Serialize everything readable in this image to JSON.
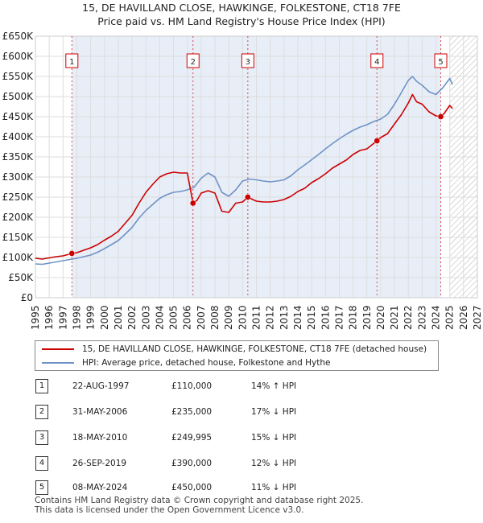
{
  "chart_data": {
    "type": "line",
    "title": "15, DE HAVILLAND CLOSE, HAWKINGE, FOLKESTONE, CT18 7FE",
    "subtitle": "Price paid vs. HM Land Registry's House Price Index (HPI)",
    "xlim": [
      1995,
      2027
    ],
    "ylim": [
      0,
      650000
    ],
    "x_ticks": [
      "1995",
      "1996",
      "1997",
      "1998",
      "1999",
      "2000",
      "2001",
      "2002",
      "2003",
      "2004",
      "2005",
      "2006",
      "2007",
      "2008",
      "2009",
      "2010",
      "2011",
      "2012",
      "2013",
      "2014",
      "2015",
      "2016",
      "2017",
      "2018",
      "2019",
      "2020",
      "2021",
      "2022",
      "2023",
      "2024",
      "2025",
      "2026",
      "2027"
    ],
    "y_ticks": [
      "£0",
      "£50K",
      "£100K",
      "£150K",
      "£200K",
      "£250K",
      "£300K",
      "£350K",
      "£400K",
      "£450K",
      "£500K",
      "£550K",
      "£600K",
      "£650K"
    ],
    "forecast_start": 2025,
    "series": [
      {
        "name": "15, DE HAVILLAND CLOSE, HAWKINGE, FOLKESTONE, CT18 7FE (detached house)",
        "color": "#cc0000",
        "x": [
          1995,
          1995.5,
          1996,
          1996.5,
          1997,
          1997.64,
          1998,
          1998.5,
          1999,
          1999.5,
          2000,
          2000.5,
          2001,
          2001.5,
          2002,
          2002.5,
          2003,
          2003.5,
          2004,
          2004.5,
          2005,
          2005.5,
          2006,
          2006.41,
          2006.7,
          2007,
          2007.5,
          2008,
          2008.5,
          2009,
          2009.5,
          2010,
          2010.38,
          2010.8,
          2011,
          2011.5,
          2012,
          2012.5,
          2013,
          2013.5,
          2014,
          2014.5,
          2015,
          2015.5,
          2016,
          2016.5,
          2017,
          2017.5,
          2018,
          2018.5,
          2019,
          2019.73,
          2020,
          2020.5,
          2021,
          2021.5,
          2022,
          2022.3,
          2022.6,
          2023,
          2023.5,
          2024,
          2024.35,
          2024.6,
          2025,
          2025.2
        ],
        "y": [
          98000,
          96000,
          99000,
          102000,
          104000,
          110000,
          112000,
          118000,
          124000,
          132000,
          143000,
          153000,
          165000,
          185000,
          205000,
          235000,
          262000,
          282000,
          300000,
          308000,
          312000,
          310000,
          310000,
          235000,
          242000,
          260000,
          266000,
          260000,
          215000,
          212000,
          235000,
          238000,
          249995,
          243000,
          240000,
          238000,
          238000,
          240000,
          244000,
          252000,
          264000,
          272000,
          286000,
          296000,
          308000,
          322000,
          332000,
          342000,
          356000,
          366000,
          370000,
          390000,
          398000,
          408000,
          432000,
          455000,
          484000,
          505000,
          487000,
          481000,
          462000,
          452000,
          450000,
          458000,
          478000,
          470000
        ]
      },
      {
        "name": "HPI: Average price, detached house, Folkestone and Hythe",
        "color": "#6f93c6",
        "x": [
          1995,
          1995.5,
          1996,
          1996.5,
          1997,
          1997.5,
          1998,
          1998.5,
          1999,
          1999.5,
          2000,
          2000.5,
          2001,
          2001.5,
          2002,
          2002.5,
          2003,
          2003.5,
          2004,
          2004.5,
          2005,
          2005.5,
          2006,
          2006.5,
          2007,
          2007.5,
          2008,
          2008.5,
          2009,
          2009.5,
          2010,
          2010.5,
          2011,
          2011.5,
          2012,
          2012.5,
          2013,
          2013.5,
          2014,
          2014.5,
          2015,
          2015.5,
          2016,
          2016.5,
          2017,
          2017.5,
          2018,
          2018.5,
          2019,
          2019.5,
          2020,
          2020.5,
          2021,
          2021.5,
          2022,
          2022.3,
          2022.6,
          2023,
          2023.5,
          2024,
          2024.5,
          2025,
          2025.2
        ],
        "y": [
          84000,
          83000,
          86000,
          89000,
          92000,
          95000,
          98000,
          102000,
          106000,
          113000,
          122000,
          132000,
          142000,
          158000,
          175000,
          198000,
          217000,
          232000,
          247000,
          256000,
          262000,
          264000,
          268000,
          275000,
          297000,
          310000,
          300000,
          262000,
          252000,
          268000,
          290000,
          295000,
          293000,
          290000,
          288000,
          290000,
          293000,
          303000,
          318000,
          330000,
          343000,
          356000,
          370000,
          383000,
          395000,
          406000,
          416000,
          424000,
          430000,
          438000,
          444000,
          456000,
          481000,
          510000,
          540000,
          550000,
          538000,
          528000,
          512000,
          505000,
          522000,
          545000,
          530000
        ]
      }
    ],
    "sales": [
      {
        "num": "1",
        "x": 1997.64,
        "y": 110000,
        "date": "22-AUG-1997",
        "price": "£110,000",
        "hpi": "14% ↑ HPI"
      },
      {
        "num": "2",
        "x": 2006.41,
        "y": 235000,
        "date": "31-MAY-2006",
        "price": "£235,000",
        "hpi": "17% ↓ HPI"
      },
      {
        "num": "3",
        "x": 2010.38,
        "y": 249995,
        "date": "18-MAY-2010",
        "price": "£249,995",
        "hpi": "15% ↓ HPI"
      },
      {
        "num": "4",
        "x": 2019.73,
        "y": 390000,
        "date": "26-SEP-2019",
        "price": "£390,000",
        "hpi": "12% ↓ HPI"
      },
      {
        "num": "5",
        "x": 2024.35,
        "y": 450000,
        "date": "08-MAY-2024",
        "price": "£450,000",
        "hpi": "11% ↓ HPI"
      }
    ]
  },
  "legend": {
    "property_label": "15, DE HAVILLAND CLOSE, HAWKINGE, FOLKESTONE, CT18 7FE (detached house)",
    "hpi_label": "HPI: Average price, detached house, Folkestone and Hythe"
  },
  "footer": {
    "line1": "Contains HM Land Registry data © Crown copyright and database right 2025.",
    "line2": "This data is licensed under the Open Government Licence v3.0."
  }
}
